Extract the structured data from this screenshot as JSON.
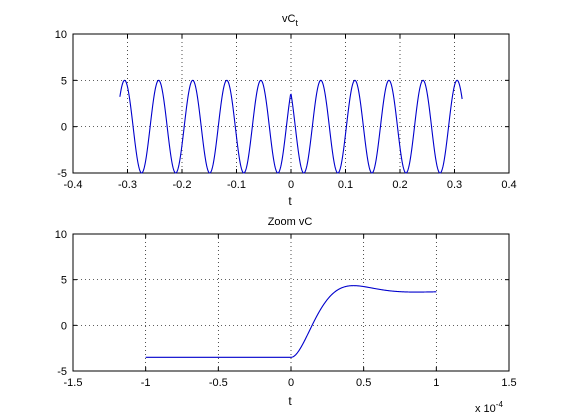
{
  "chart_data": [
    {
      "type": "line",
      "title": "vC",
      "title_subscript": "t",
      "xlabel": "t",
      "ylabel": "",
      "xlim": [
        -0.4,
        0.4
      ],
      "ylim": [
        -5,
        10
      ],
      "xticks": [
        -0.4,
        -0.3,
        -0.2,
        -0.1,
        0,
        0.1,
        0.2,
        0.3,
        0.4
      ],
      "xtick_labels": [
        "-0.4",
        "-0.3",
        "-0.2",
        "-0.1",
        "0",
        "0.1",
        "0.2",
        "0.3",
        "0.4"
      ],
      "yticks": [
        -5,
        0,
        5,
        10
      ],
      "ytick_labels": [
        "-5",
        "0",
        "5",
        "10"
      ],
      "grid": true,
      "color": "#0000cc",
      "series": [
        {
          "x_range": [
            -0.314,
            0.314
          ],
          "amplitude": 5,
          "frequency": 16,
          "phase_left": -0.72,
          "phase_right": 0.78,
          "break_at": 0
        }
      ]
    },
    {
      "type": "line",
      "title": "Zoom vC",
      "xlabel": "t",
      "ylabel": "",
      "xlim": [
        -1.5,
        1.5
      ],
      "ylim": [
        -5,
        10
      ],
      "x_exponent_label": "x 10",
      "x_exponent": "-4",
      "xticks": [
        -1.5,
        -1,
        -0.5,
        0,
        0.5,
        1,
        1.5
      ],
      "xtick_labels": [
        "-1.5",
        "-1",
        "-0.5",
        "0",
        "0.5",
        "1",
        "1.5"
      ],
      "yticks": [
        -5,
        0,
        5,
        10
      ],
      "ytick_labels": [
        "-5",
        "0",
        "5",
        "10"
      ],
      "grid": true,
      "color": "#0000cc",
      "series": [
        {
          "x_range": [
            -1,
            1
          ],
          "pre_value": -3.5,
          "step_at": 0,
          "final_value": 3.7,
          "damping": 5.6,
          "omega": 7.3
        }
      ]
    }
  ]
}
